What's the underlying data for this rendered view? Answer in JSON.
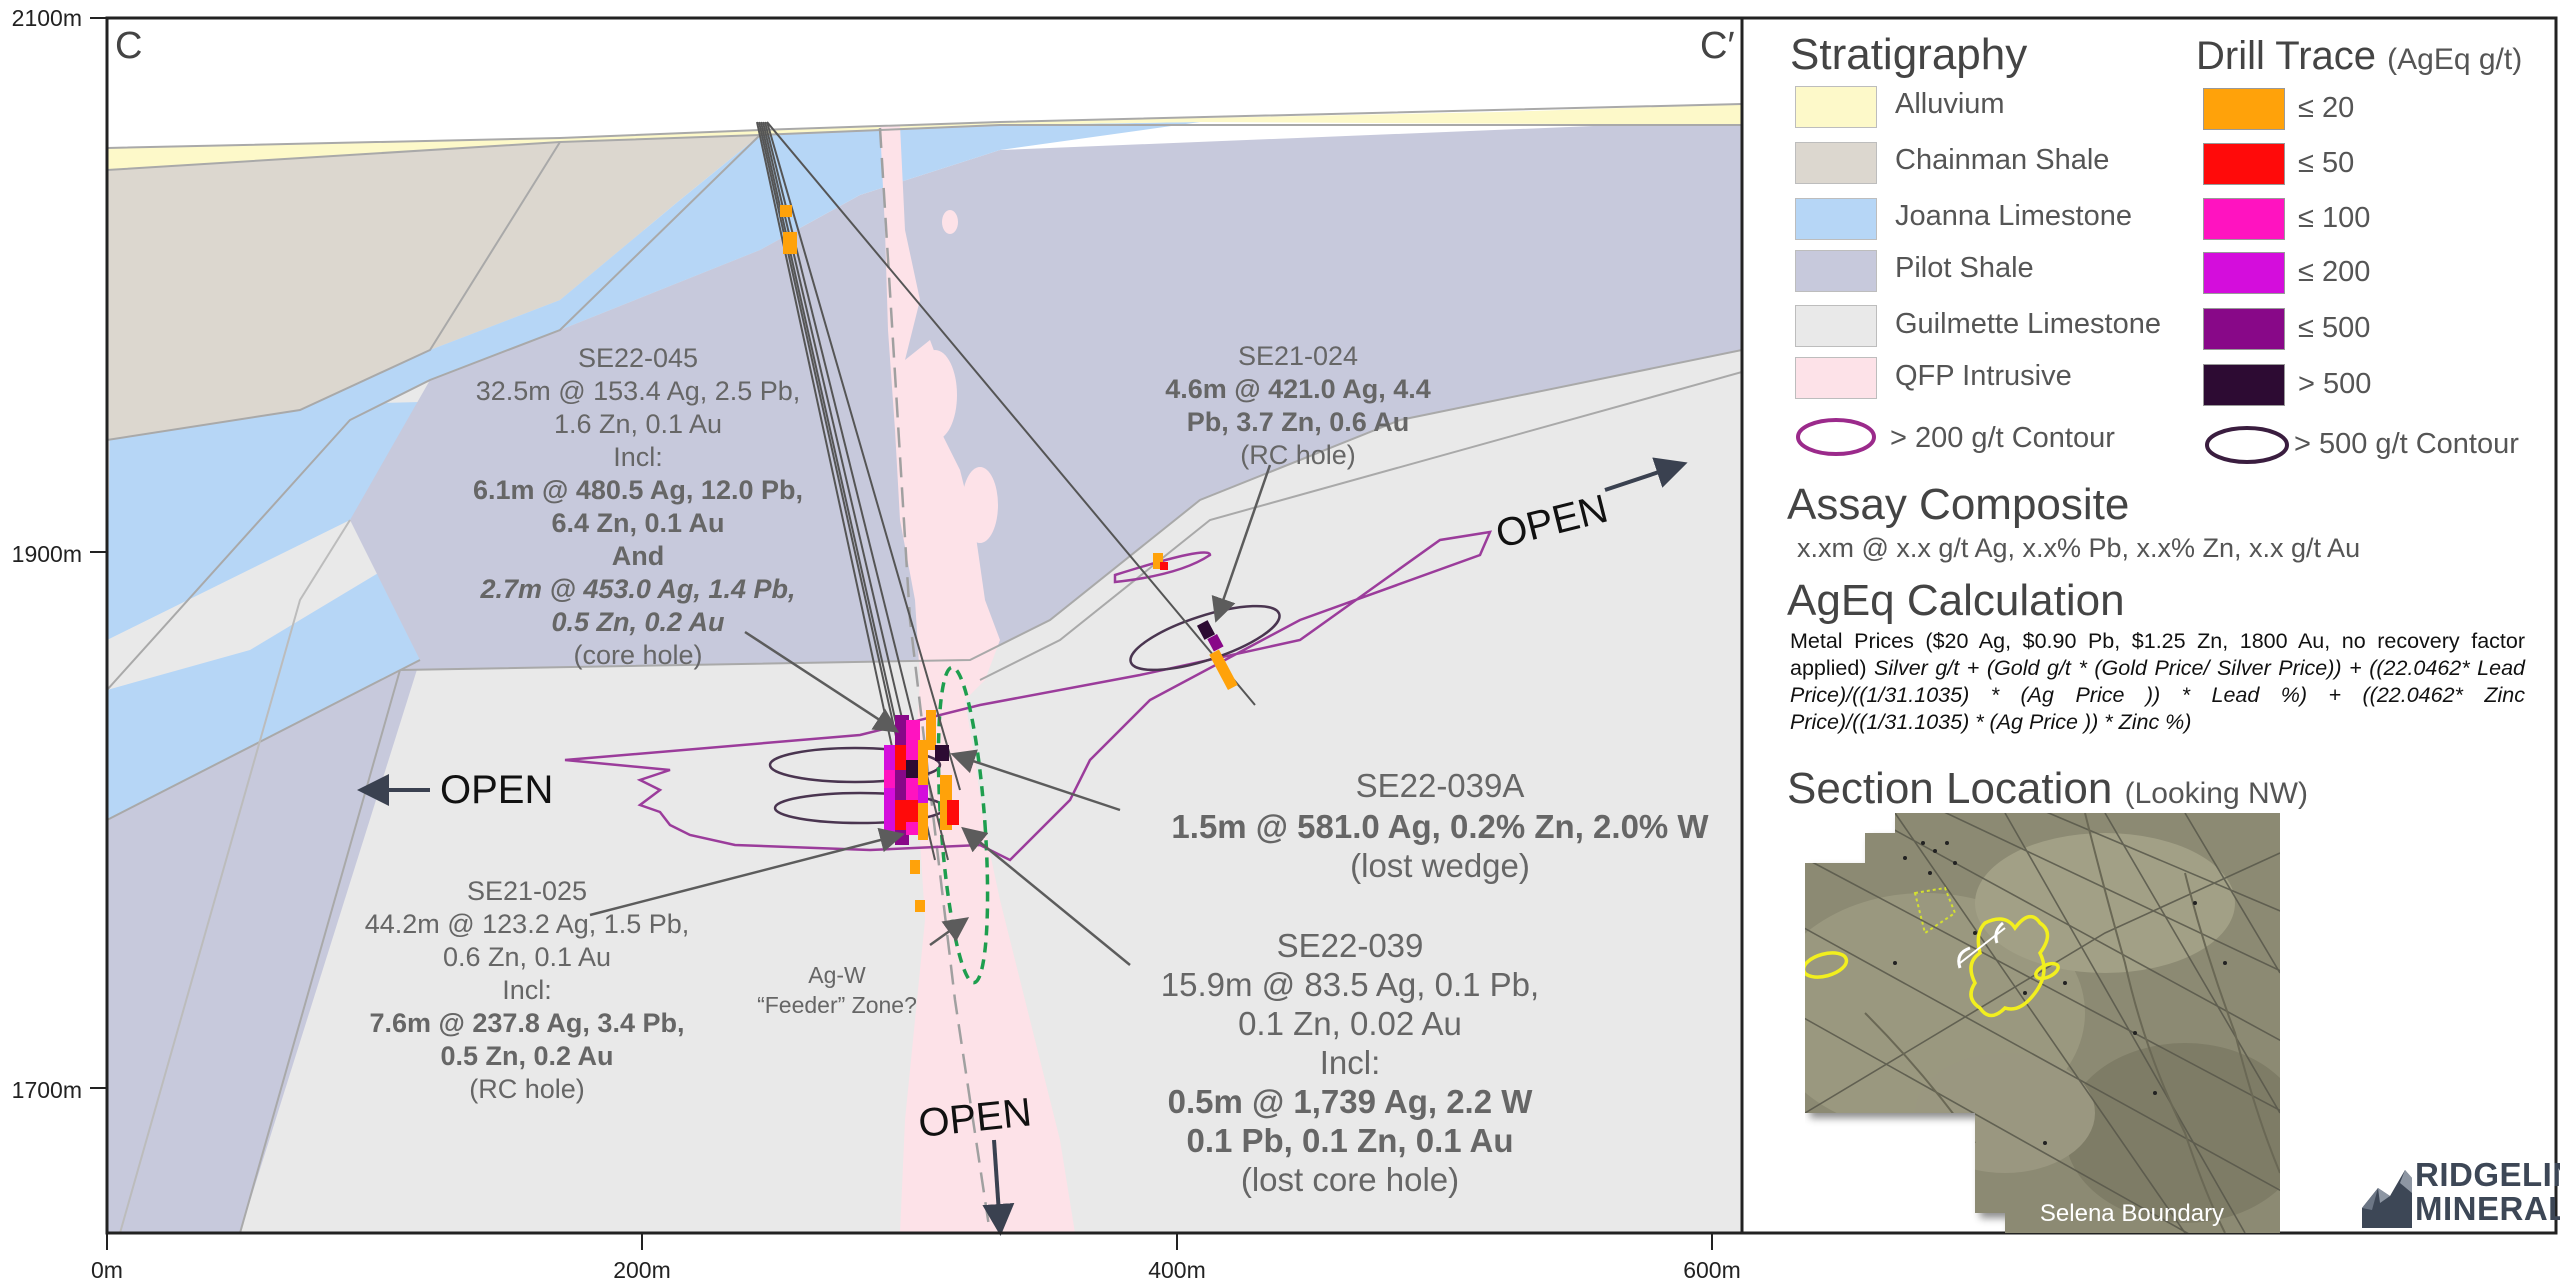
{
  "section": {
    "start_label": "C",
    "end_label": "C′",
    "y_axis_ticks": [
      "2100m",
      "1900m",
      "1700m"
    ],
    "x_axis_ticks": [
      "0m",
      "200m",
      "400m",
      "600m"
    ]
  },
  "annotations": {
    "se22_045": {
      "name": "SE22-045",
      "line1": "32.5m @ 153.4 Ag, 2.5 Pb,",
      "line2": "1.6 Zn, 0.1 Au",
      "incl": "Incl:",
      "bold1": "6.1m @ 480.5 Ag, 12.0 Pb,",
      "bold2": "6.4 Zn, 0.1 Au",
      "and": "And",
      "ital1": "2.7m @ 453.0 Ag, 1.4 Pb,",
      "ital2": "0.5 Zn, 0.2 Au",
      "type": "(core hole)"
    },
    "se21_024": {
      "name": "SE21-024",
      "bold1": "4.6m @ 421.0 Ag, 4.4",
      "bold2": "Pb, 3.7 Zn, 0.6 Au",
      "type": "(RC hole)"
    },
    "se22_039a": {
      "name": "SE22-039A",
      "bold1": "1.5m @ 581.0 Ag, 0.2% Zn, 2.0% W",
      "type": "(lost wedge)"
    },
    "se21_025": {
      "name": "SE21-025",
      "line1": "44.2m @ 123.2 Ag, 1.5 Pb,",
      "line2": "0.6 Zn, 0.1 Au",
      "incl": "Incl:",
      "bold1": "7.6m @ 237.8 Ag, 3.4 Pb,",
      "bold2": "0.5 Zn, 0.2 Au",
      "type": "(RC hole)"
    },
    "se22_039": {
      "name": "SE22-039",
      "line1": "15.9m @ 83.5 Ag, 0.1 Pb,",
      "line2": "0.1 Zn, 0.02 Au",
      "incl": "Incl:",
      "bold1": "0.5m @ 1,739 Ag, 2.2 W",
      "bold2": "0.1 Pb, 0.1 Zn, 0.1 Au",
      "type": "(lost core hole)"
    },
    "feeder": {
      "line1": "Ag-W",
      "line2": "“Feeder” Zone?"
    },
    "open_labels": [
      "OPEN",
      "OPEN",
      "OPEN"
    ]
  },
  "legend": {
    "stratigraphy_title": "Stratigraphy",
    "stratigraphy": [
      {
        "label": "Alluvium",
        "color": "#fdf9c9"
      },
      {
        "label": "Chainman Shale",
        "color": "#dcd7cf"
      },
      {
        "label": "Joanna Limestone",
        "color": "#b6d6f6"
      },
      {
        "label": "Pilot Shale",
        "color": "#c7c9dc"
      },
      {
        "label": "Guilmette Limestone",
        "color": "#e9e9e9"
      },
      {
        "label": "QFP Intrusive",
        "color": "#fde2e8"
      }
    ],
    "contour_200_label": "> 200 g/t Contour",
    "drill_title": "Drill Trace",
    "drill_units": "(AgEq g/t)",
    "drill_trace": [
      {
        "label": "≤ 20",
        "color": "#ffa20a"
      },
      {
        "label": "≤ 50",
        "color": "#ff0a0a"
      },
      {
        "label": "≤ 100",
        "color": "#ff13c0"
      },
      {
        "label": "≤ 200",
        "color": "#d40ddc"
      },
      {
        "label": "≤ 500",
        "color": "#880888"
      },
      {
        "label": "> 500",
        "color": "#2d0b33"
      }
    ],
    "contour_500_label": "> 500 g/t Contour"
  },
  "assay": {
    "title": "Assay Composite",
    "format": "x.xm @ x.x g/t Ag, x.x% Pb, x.x% Zn, x.x g/t Au"
  },
  "ageq": {
    "title": "AgEq Calculation",
    "prefix": "Metal Prices ($20 Ag, $0.90 Pb, $1.25 Zn, 1800 Au, no recovery factor applied)",
    "formula": "Silver g/t + (Gold g/t * (Gold Price/ Silver Price)) + ((22.0462* Lead Price)/((1/31.1035) * (Ag Price )) * Lead %) + ((22.0462* Zinc Price)/((1/31.1035) * (Ag Price )) * Zinc %)"
  },
  "section_location": {
    "title": "Section Location",
    "sub": "(Looking NW)",
    "boundary_label": "Selena Boundary"
  },
  "logo": {
    "line1": "RIDGELINE",
    "line2": "MINERALS"
  }
}
